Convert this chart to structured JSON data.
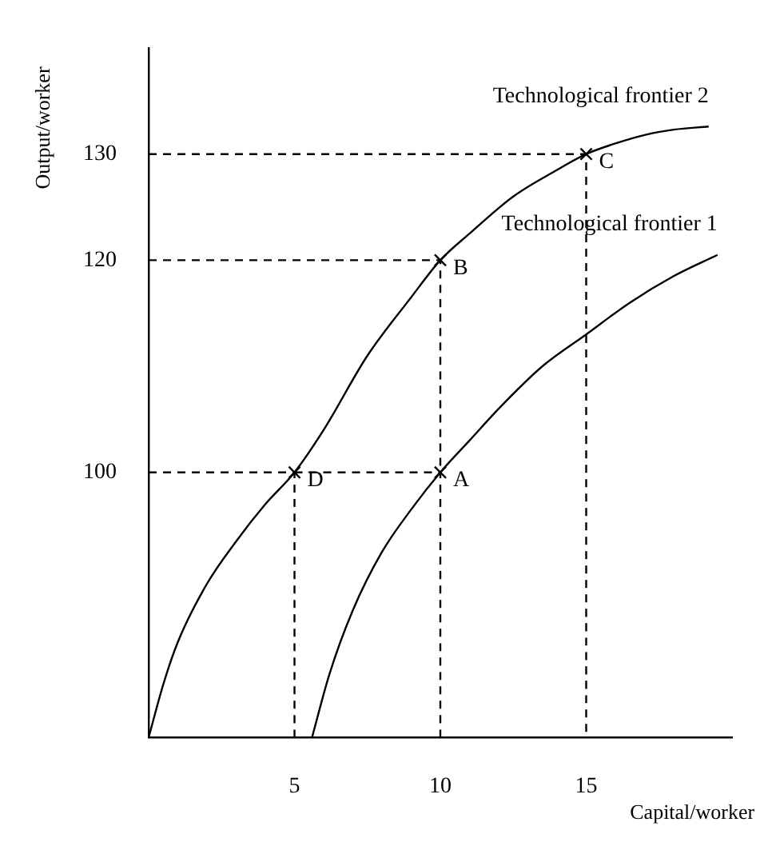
{
  "chart_data": {
    "type": "line",
    "xlabel": "Capital/worker",
    "ylabel": "Output/worker",
    "xlim": [
      0,
      20
    ],
    "ylim": [
      75,
      140
    ],
    "xticks": [
      5,
      10,
      15
    ],
    "yticks": [
      100,
      120,
      130
    ],
    "grid": false,
    "legend": false,
    "series": [
      {
        "name": "Technological frontier 2",
        "type": "line",
        "color": "#000000",
        "marker": "none",
        "line_style": "solid",
        "x": [
          0,
          0.5,
          1,
          2,
          3,
          4,
          5,
          6,
          7.5,
          9,
          10,
          11,
          12.5,
          14,
          15,
          16,
          17,
          18,
          19.2
        ],
        "values": [
          75,
          80,
          84,
          89.5,
          93.5,
          97,
          100,
          104,
          111,
          116.5,
          120,
          122.5,
          126,
          128.5,
          130,
          131,
          131.8,
          132.3,
          132.6
        ]
      },
      {
        "name": "Technological frontier 1",
        "type": "line",
        "color": "#000000",
        "marker": "none",
        "line_style": "solid",
        "x": [
          5.6,
          6.2,
          7,
          8,
          9,
          10,
          11,
          12,
          13.5,
          15,
          16.5,
          18,
          19.5
        ],
        "values": [
          75,
          81,
          87,
          92.5,
          96.5,
          100,
          103,
          106,
          110,
          113,
          116,
          118.5,
          120.5
        ]
      },
      {
        "type": "line",
        "color": "#000000",
        "marker": "none",
        "line_style": "dashed",
        "x": [
          0,
          5,
          5
        ],
        "values": [
          100,
          100,
          75
        ]
      },
      {
        "type": "line",
        "color": "#000000",
        "marker": "none",
        "line_style": "dashed",
        "x": [
          5,
          10,
          10
        ],
        "values": [
          100,
          100,
          75
        ]
      },
      {
        "type": "line",
        "color": "#000000",
        "marker": "none",
        "line_style": "dashed",
        "x": [
          0,
          10,
          10
        ],
        "values": [
          120,
          120,
          100
        ]
      },
      {
        "type": "line",
        "color": "#000000",
        "marker": "none",
        "line_style": "dashed",
        "x": [
          0,
          15,
          15
        ],
        "values": [
          130,
          130,
          75
        ]
      },
      {
        "type": "scatter",
        "color": "#000000",
        "marker": "cross",
        "x": [
          10,
          10,
          15,
          5
        ],
        "values": [
          100,
          120,
          130,
          100
        ]
      }
    ],
    "annotations": [
      {
        "text": "A",
        "x": 10,
        "y": 100
      },
      {
        "text": "B",
        "x": 10,
        "y": 120
      },
      {
        "text": "C",
        "x": 15,
        "y": 130
      },
      {
        "text": "D",
        "x": 5,
        "y": 100
      }
    ]
  }
}
